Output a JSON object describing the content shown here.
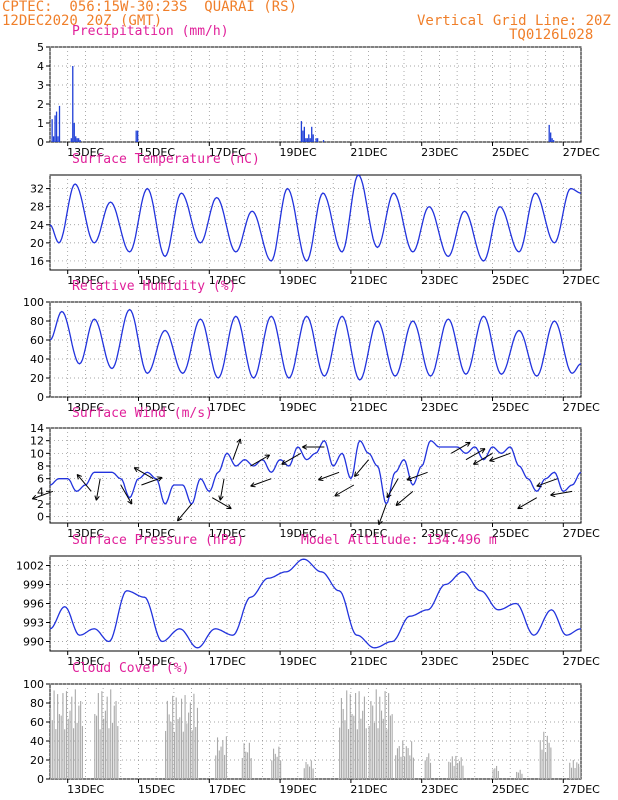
{
  "header": {
    "line1_left": "CPTEC:  056:15W-30:23S  QUARAI (RS)",
    "line2_left": "12DEC2020 20Z (GMT)",
    "line1_right": "Vertical Grid Line: 20Z",
    "line2_right": "TQ0126L028"
  },
  "model_altitude": "Model Altitude: 134.496 m",
  "colors": {
    "header": "#f07f2a",
    "title": "#e0209a",
    "series": "#2233dd",
    "bars_precip": "#1f3fd6",
    "bars_cloud": "#a9a9a9"
  },
  "chart_data": [
    {
      "type": "bar",
      "title": "Precipitation (mm/h)",
      "x_labels": [
        "13DEC",
        "15DEC",
        "17DEC",
        "19DEC",
        "21DEC",
        "23DEC",
        "25DEC",
        "27DEC"
      ],
      "ylim": [
        0,
        5
      ],
      "yticks": [
        0,
        1,
        2,
        3,
        4,
        5
      ],
      "x_hours": [
        1,
        2,
        3,
        4,
        5,
        6,
        14,
        15,
        16,
        17,
        18,
        19,
        20,
        58,
        59,
        170,
        171,
        172,
        173,
        174,
        175,
        176,
        177,
        178,
        180,
        181,
        185,
        338,
        339,
        340,
        341
      ],
      "values": [
        1.2,
        0.3,
        1.4,
        1.6,
        0.3,
        1.9,
        0.2,
        4.0,
        1.0,
        0.3,
        0.2,
        0.2,
        0.1,
        0.6,
        0.6,
        1.1,
        0.6,
        0.8,
        0.2,
        0.2,
        0.4,
        0.2,
        0.8,
        0.4,
        0.2,
        0.2,
        0.1,
        0.9,
        0.5,
        0.2,
        0.1
      ],
      "grid": true
    },
    {
      "type": "line",
      "title": "Surface Temperature (nC)",
      "x_labels": [
        "13DEC",
        "15DEC",
        "17DEC",
        "19DEC",
        "21DEC",
        "23DEC",
        "25DEC",
        "27DEC"
      ],
      "ylim": [
        14,
        35
      ],
      "yticks": [
        16,
        20,
        24,
        28,
        32
      ],
      "daily_extremes": [
        {
          "hour": 0,
          "value": 24
        },
        {
          "hour": 6,
          "value": 20
        },
        {
          "hour": 17,
          "value": 33
        },
        {
          "hour": 30,
          "value": 20
        },
        {
          "hour": 41,
          "value": 29
        },
        {
          "hour": 54,
          "value": 18
        },
        {
          "hour": 66,
          "value": 32
        },
        {
          "hour": 78,
          "value": 17
        },
        {
          "hour": 89,
          "value": 31
        },
        {
          "hour": 102,
          "value": 20
        },
        {
          "hour": 113,
          "value": 30
        },
        {
          "hour": 126,
          "value": 18
        },
        {
          "hour": 137,
          "value": 27
        },
        {
          "hour": 150,
          "value": 16
        },
        {
          "hour": 161,
          "value": 32
        },
        {
          "hour": 174,
          "value": 16
        },
        {
          "hour": 185,
          "value": 31
        },
        {
          "hour": 198,
          "value": 18
        },
        {
          "hour": 209,
          "value": 35
        },
        {
          "hour": 222,
          "value": 19
        },
        {
          "hour": 233,
          "value": 31
        },
        {
          "hour": 246,
          "value": 18
        },
        {
          "hour": 257,
          "value": 28
        },
        {
          "hour": 270,
          "value": 17
        },
        {
          "hour": 281,
          "value": 27
        },
        {
          "hour": 294,
          "value": 16
        },
        {
          "hour": 305,
          "value": 28
        },
        {
          "hour": 318,
          "value": 18
        },
        {
          "hour": 329,
          "value": 31
        },
        {
          "hour": 342,
          "value": 20
        },
        {
          "hour": 353,
          "value": 32
        },
        {
          "hour": 360,
          "value": 31
        }
      ],
      "grid": true
    },
    {
      "type": "line",
      "title": "Relative Humidity (%)",
      "x_labels": [
        "13DEC",
        "15DEC",
        "17DEC",
        "19DEC",
        "21DEC",
        "23DEC",
        "25DEC",
        "27DEC"
      ],
      "ylim": [
        0,
        100
      ],
      "yticks": [
        0,
        20,
        40,
        60,
        80,
        100
      ],
      "daily_extremes": [
        {
          "hour": 0,
          "value": 60
        },
        {
          "hour": 8,
          "value": 90
        },
        {
          "hour": 20,
          "value": 35
        },
        {
          "hour": 30,
          "value": 82
        },
        {
          "hour": 42,
          "value": 30
        },
        {
          "hour": 54,
          "value": 92
        },
        {
          "hour": 66,
          "value": 25
        },
        {
          "hour": 78,
          "value": 70
        },
        {
          "hour": 90,
          "value": 25
        },
        {
          "hour": 102,
          "value": 82
        },
        {
          "hour": 114,
          "value": 20
        },
        {
          "hour": 126,
          "value": 85
        },
        {
          "hour": 138,
          "value": 20
        },
        {
          "hour": 150,
          "value": 85
        },
        {
          "hour": 162,
          "value": 20
        },
        {
          "hour": 174,
          "value": 85
        },
        {
          "hour": 186,
          "value": 22
        },
        {
          "hour": 198,
          "value": 85
        },
        {
          "hour": 210,
          "value": 18
        },
        {
          "hour": 222,
          "value": 80
        },
        {
          "hour": 234,
          "value": 22
        },
        {
          "hour": 246,
          "value": 80
        },
        {
          "hour": 258,
          "value": 22
        },
        {
          "hour": 270,
          "value": 82
        },
        {
          "hour": 282,
          "value": 24
        },
        {
          "hour": 294,
          "value": 85
        },
        {
          "hour": 306,
          "value": 24
        },
        {
          "hour": 318,
          "value": 70
        },
        {
          "hour": 330,
          "value": 22
        },
        {
          "hour": 342,
          "value": 80
        },
        {
          "hour": 354,
          "value": 25
        },
        {
          "hour": 360,
          "value": 35
        }
      ],
      "grid": true
    },
    {
      "type": "line",
      "title": "Surface Wind (m/s)",
      "x_labels": [
        "13DEC",
        "15DEC",
        "17DEC",
        "19DEC",
        "21DEC",
        "23DEC",
        "25DEC",
        "27DEC"
      ],
      "ylim": [
        -1,
        14
      ],
      "yticks": [
        0,
        2,
        4,
        6,
        8,
        10,
        12,
        14
      ],
      "speed": [
        {
          "hour": 0,
          "value": 5
        },
        {
          "hour": 6,
          "value": 6
        },
        {
          "hour": 12,
          "value": 6
        },
        {
          "hour": 18,
          "value": 4
        },
        {
          "hour": 24,
          "value": 5
        },
        {
          "hour": 30,
          "value": 7
        },
        {
          "hour": 36,
          "value": 7
        },
        {
          "hour": 42,
          "value": 7
        },
        {
          "hour": 48,
          "value": 6
        },
        {
          "hour": 54,
          "value": 3
        },
        {
          "hour": 60,
          "value": 6
        },
        {
          "hour": 66,
          "value": 7
        },
        {
          "hour": 72,
          "value": 6
        },
        {
          "hour": 78,
          "value": 2
        },
        {
          "hour": 84,
          "value": 5
        },
        {
          "hour": 90,
          "value": 5
        },
        {
          "hour": 96,
          "value": 2
        },
        {
          "hour": 102,
          "value": 6
        },
        {
          "hour": 108,
          "value": 4
        },
        {
          "hour": 114,
          "value": 7
        },
        {
          "hour": 120,
          "value": 10
        },
        {
          "hour": 126,
          "value": 8
        },
        {
          "hour": 132,
          "value": 9
        },
        {
          "hour": 138,
          "value": 8
        },
        {
          "hour": 144,
          "value": 9
        },
        {
          "hour": 150,
          "value": 7
        },
        {
          "hour": 156,
          "value": 9
        },
        {
          "hour": 162,
          "value": 8
        },
        {
          "hour": 168,
          "value": 11
        },
        {
          "hour": 174,
          "value": 9
        },
        {
          "hour": 180,
          "value": 10
        },
        {
          "hour": 186,
          "value": 12
        },
        {
          "hour": 192,
          "value": 8
        },
        {
          "hour": 198,
          "value": 10
        },
        {
          "hour": 204,
          "value": 6
        },
        {
          "hour": 210,
          "value": 12
        },
        {
          "hour": 216,
          "value": 10
        },
        {
          "hour": 222,
          "value": 8
        },
        {
          "hour": 228,
          "value": 2
        },
        {
          "hour": 234,
          "value": 7
        },
        {
          "hour": 240,
          "value": 9
        },
        {
          "hour": 246,
          "value": 5
        },
        {
          "hour": 252,
          "value": 8
        },
        {
          "hour": 258,
          "value": 12
        },
        {
          "hour": 264,
          "value": 11
        },
        {
          "hour": 270,
          "value": 11
        },
        {
          "hour": 276,
          "value": 11
        },
        {
          "hour": 282,
          "value": 10
        },
        {
          "hour": 288,
          "value": 11
        },
        {
          "hour": 294,
          "value": 9
        },
        {
          "hour": 300,
          "value": 11
        },
        {
          "hour": 306,
          "value": 10
        },
        {
          "hour": 312,
          "value": 11
        },
        {
          "hour": 318,
          "value": 8
        },
        {
          "hour": 324,
          "value": 6
        },
        {
          "hour": 330,
          "value": 4
        },
        {
          "hour": 336,
          "value": 6
        },
        {
          "hour": 342,
          "value": 7
        },
        {
          "hour": 348,
          "value": 4
        },
        {
          "hour": 354,
          "value": 5
        },
        {
          "hour": 360,
          "value": 7
        }
      ],
      "direction_arrows_shown": true,
      "grid": true
    },
    {
      "type": "line",
      "title": "Surface Pressure (hPa)",
      "x_labels": [
        "13DEC",
        "15DEC",
        "17DEC",
        "19DEC",
        "21DEC",
        "23DEC",
        "25DEC",
        "27DEC"
      ],
      "ylim": [
        988.5,
        1003.5
      ],
      "yticks": [
        990,
        993,
        996,
        999,
        1002
      ],
      "daily_extremes": [
        {
          "hour": 0,
          "value": 992
        },
        {
          "hour": 10,
          "value": 995.5
        },
        {
          "hour": 20,
          "value": 991
        },
        {
          "hour": 30,
          "value": 992
        },
        {
          "hour": 40,
          "value": 990
        },
        {
          "hour": 52,
          "value": 998
        },
        {
          "hour": 64,
          "value": 997
        },
        {
          "hour": 76,
          "value": 990
        },
        {
          "hour": 88,
          "value": 992
        },
        {
          "hour": 100,
          "value": 989
        },
        {
          "hour": 112,
          "value": 992
        },
        {
          "hour": 124,
          "value": 991
        },
        {
          "hour": 136,
          "value": 997
        },
        {
          "hour": 148,
          "value": 1000
        },
        {
          "hour": 160,
          "value": 1001
        },
        {
          "hour": 172,
          "value": 1003
        },
        {
          "hour": 184,
          "value": 1001
        },
        {
          "hour": 196,
          "value": 998
        },
        {
          "hour": 208,
          "value": 991
        },
        {
          "hour": 220,
          "value": 989
        },
        {
          "hour": 232,
          "value": 990
        },
        {
          "hour": 244,
          "value": 994
        },
        {
          "hour": 256,
          "value": 995
        },
        {
          "hour": 268,
          "value": 999
        },
        {
          "hour": 280,
          "value": 1001
        },
        {
          "hour": 292,
          "value": 998
        },
        {
          "hour": 304,
          "value": 995
        },
        {
          "hour": 316,
          "value": 996
        },
        {
          "hour": 328,
          "value": 991
        },
        {
          "hour": 340,
          "value": 995
        },
        {
          "hour": 350,
          "value": 991
        },
        {
          "hour": 360,
          "value": 992
        }
      ],
      "grid": true
    },
    {
      "type": "bar",
      "title": "Cloud Cover (%)",
      "x_labels": [
        "13DEC",
        "15DEC",
        "17DEC",
        "19DEC",
        "21DEC",
        "23DEC",
        "25DEC",
        "27DEC"
      ],
      "ylim": [
        0,
        100
      ],
      "yticks": [
        0,
        20,
        40,
        60,
        80,
        100
      ],
      "blocks": [
        {
          "start": 0,
          "end": 22,
          "level": 95
        },
        {
          "start": 30,
          "end": 46,
          "level": 95
        },
        {
          "start": 78,
          "end": 100,
          "level": 90
        },
        {
          "start": 112,
          "end": 120,
          "level": 45
        },
        {
          "start": 130,
          "end": 136,
          "level": 40
        },
        {
          "start": 150,
          "end": 156,
          "level": 35
        },
        {
          "start": 172,
          "end": 178,
          "level": 20
        },
        {
          "start": 196,
          "end": 214,
          "level": 95
        },
        {
          "start": 216,
          "end": 232,
          "level": 95
        },
        {
          "start": 234,
          "end": 246,
          "level": 40
        },
        {
          "start": 254,
          "end": 258,
          "level": 30
        },
        {
          "start": 270,
          "end": 280,
          "level": 25
        },
        {
          "start": 300,
          "end": 304,
          "level": 15
        },
        {
          "start": 316,
          "end": 320,
          "level": 10
        },
        {
          "start": 332,
          "end": 340,
          "level": 50
        },
        {
          "start": 352,
          "end": 360,
          "level": 20
        }
      ],
      "grid": true
    }
  ]
}
